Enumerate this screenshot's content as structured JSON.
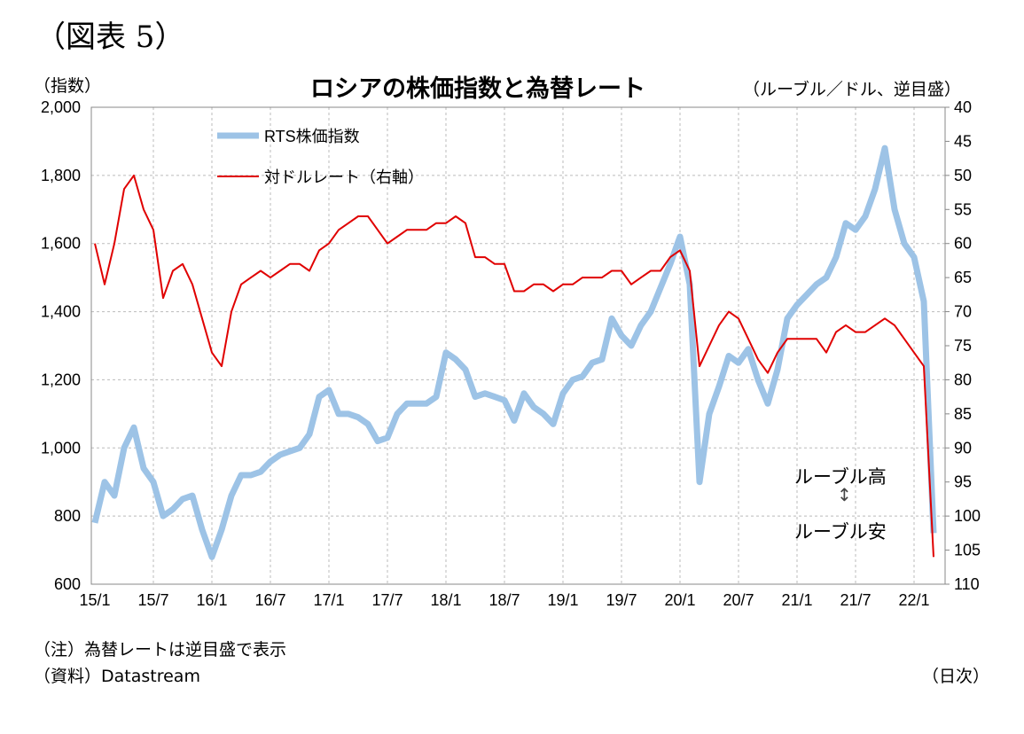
{
  "figure_label": "（図表 5）",
  "notes": {
    "note": "（注）為替レートは逆目盛で表示",
    "source": "（資料）Datastream",
    "frequency": "（日次）"
  },
  "annotation": {
    "top": "ルーブル高",
    "arrow": "↕",
    "bottom": "ルーブル安"
  },
  "chart_data": {
    "type": "line",
    "title": "ロシアの株価指数と為替レート",
    "ylabel": "（指数）",
    "y2label": "（ルーブル／ドル、逆目盛）",
    "ylim": [
      600,
      2000
    ],
    "y2lim": [
      40,
      110
    ],
    "y2_inverted": true,
    "yticks": [
      "600",
      "800",
      "1,000",
      "1,200",
      "1,400",
      "1,600",
      "1,800",
      "2,000"
    ],
    "y2ticks": [
      "40",
      "45",
      "50",
      "55",
      "60",
      "65",
      "70",
      "75",
      "80",
      "85",
      "90",
      "95",
      "100",
      "105",
      "110"
    ],
    "xticks": [
      "15/1",
      "15/7",
      "16/1",
      "16/7",
      "17/1",
      "17/7",
      "18/1",
      "18/7",
      "19/1",
      "19/7",
      "20/1",
      "20/7",
      "21/1",
      "21/7",
      "22/1"
    ],
    "x_note": "monthly approximation starting 2015/1",
    "grid": true,
    "legend_position": "top-left",
    "series": [
      {
        "name": "RTS株価指数",
        "axis": "left",
        "color": "#9dc3e6",
        "values": [
          780,
          900,
          860,
          1000,
          1060,
          940,
          900,
          800,
          820,
          850,
          860,
          760,
          680,
          760,
          860,
          920,
          920,
          930,
          960,
          980,
          990,
          1000,
          1040,
          1150,
          1170,
          1100,
          1100,
          1090,
          1070,
          1020,
          1030,
          1100,
          1130,
          1130,
          1130,
          1150,
          1280,
          1260,
          1230,
          1150,
          1160,
          1150,
          1140,
          1080,
          1160,
          1120,
          1100,
          1070,
          1160,
          1200,
          1210,
          1250,
          1260,
          1380,
          1330,
          1300,
          1360,
          1400,
          1470,
          1540,
          1620,
          1480,
          900,
          1100,
          1180,
          1270,
          1250,
          1290,
          1200,
          1130,
          1230,
          1380,
          1420,
          1450,
          1480,
          1500,
          1560,
          1660,
          1640,
          1680,
          1760,
          1880,
          1700,
          1600,
          1560,
          1430,
          750
        ]
      },
      {
        "name": "対ドルレート（右軸）",
        "axis": "right",
        "color": "#e00000",
        "values": [
          60,
          66,
          60,
          52,
          50,
          55,
          58,
          68,
          64,
          63,
          66,
          71,
          76,
          78,
          70,
          66,
          65,
          64,
          65,
          64,
          63,
          63,
          64,
          61,
          60,
          58,
          57,
          56,
          56,
          58,
          60,
          59,
          58,
          58,
          58,
          57,
          57,
          56,
          57,
          62,
          62,
          63,
          63,
          67,
          67,
          66,
          66,
          67,
          66,
          66,
          65,
          65,
          65,
          64,
          64,
          66,
          65,
          64,
          64,
          62,
          61,
          64,
          78,
          75,
          72,
          70,
          71,
          74,
          77,
          79,
          76,
          74,
          74,
          74,
          74,
          76,
          73,
          72,
          73,
          73,
          72,
          71,
          72,
          74,
          76,
          78,
          106
        ]
      }
    ]
  }
}
